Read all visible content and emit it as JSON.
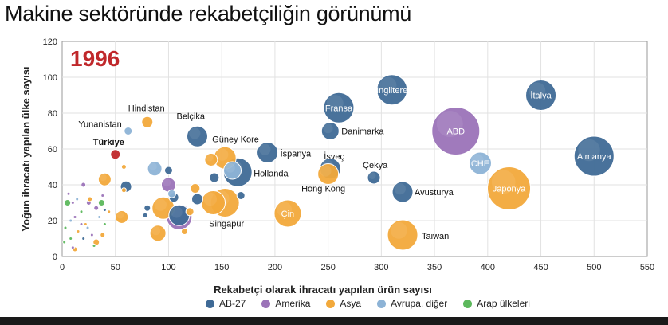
{
  "page": {
    "title": "Makine sektöründe rekabetçiliğin görünümü"
  },
  "colors": {
    "AB-27": "#3f6a96",
    "Amerika": "#9b73b8",
    "Asya": "#f2a93b",
    "Avrupa, diğer": "#8db3d6",
    "Arap ülkeleri": "#5cb85c",
    "Türkiye": "#c0282b",
    "grid": "#e2e2e2",
    "plot_border": "#9a9a9a",
    "year": "#c0282b"
  },
  "chart_data": {
    "type": "scatter",
    "annotation": "1996",
    "xlabel": "Rekabetçi olarak ihracatı yapılan ürün sayısı",
    "ylabel": "Yoğun ihracatı yapılan ülke sayısı",
    "xlim": [
      0,
      550
    ],
    "ylim": [
      0,
      120
    ],
    "x_ticks": [
      0,
      50,
      100,
      150,
      200,
      250,
      300,
      350,
      400,
      450,
      500,
      550
    ],
    "y_ticks": [
      0,
      20,
      40,
      60,
      80,
      100,
      120
    ],
    "grid": true,
    "legend_position": "bottom",
    "legend": [
      "AB-27",
      "Amerika",
      "Asya",
      "Avrupa, diğer",
      "Arap ülkeleri"
    ],
    "points": [
      {
        "label": "Almanya",
        "group": "AB-27",
        "x": 500,
        "y": 56,
        "r": 25,
        "label_inside": true
      },
      {
        "label": "İtalya",
        "group": "AB-27",
        "x": 450,
        "y": 90,
        "r": 19,
        "label_inside": true
      },
      {
        "label": "İngiltere",
        "group": "AB-27",
        "x": 310,
        "y": 93,
        "r": 19,
        "label_inside": true
      },
      {
        "label": "Fransa",
        "group": "AB-27",
        "x": 260,
        "y": 83,
        "r": 19,
        "label_inside": true
      },
      {
        "label": "ABD",
        "group": "Amerika",
        "x": 370,
        "y": 70,
        "r": 30,
        "label_inside": true
      },
      {
        "label": "CHE",
        "group": "Avrupa, diğer",
        "x": 393,
        "y": 52,
        "r": 14,
        "label_inside": true
      },
      {
        "label": "Japonya",
        "group": "Asya",
        "x": 420,
        "y": 38,
        "r": 27,
        "label_inside": true
      },
      {
        "label": "Danimarka",
        "group": "AB-27",
        "x": 252,
        "y": 70,
        "r": 11,
        "label_inside": false
      },
      {
        "label": "İsveç",
        "group": "AB-27",
        "x": 252,
        "y": 49,
        "r": 13,
        "label_inside": false
      },
      {
        "label": "Hong Kong",
        "group": "Asya",
        "x": 250,
        "y": 46,
        "r": 13,
        "label_inside": false
      },
      {
        "label": "Çekya",
        "group": "AB-27",
        "x": 293,
        "y": 44,
        "r": 8,
        "label_inside": false
      },
      {
        "label": "Avusturya",
        "group": "AB-27",
        "x": 320,
        "y": 36,
        "r": 13,
        "label_inside": false
      },
      {
        "label": "Taiwan",
        "group": "Asya",
        "x": 320,
        "y": 12,
        "r": 19,
        "label_inside": false
      },
      {
        "label": "Çin",
        "group": "Asya",
        "x": 212,
        "y": 24,
        "r": 17,
        "label_inside": true
      },
      {
        "label": "İspanya",
        "group": "AB-27",
        "x": 193,
        "y": 58,
        "r": 13,
        "label_inside": false
      },
      {
        "label": "Hollanda",
        "group": "AB-27",
        "x": 165,
        "y": 47,
        "r": 18,
        "label_inside": false
      },
      {
        "label": "Güney Kore",
        "group": "Asya",
        "x": 153,
        "y": 55,
        "r": 14,
        "label_inside": false
      },
      {
        "label": "Belçika",
        "group": "AB-27",
        "x": 127,
        "y": 67,
        "r": 13,
        "label_inside": false
      },
      {
        "label": "Singapur",
        "group": "Asya",
        "x": 153,
        "y": 30,
        "r": 18,
        "label_inside": false
      },
      {
        "label": "Hindistan",
        "group": "Asya",
        "x": 80,
        "y": 75,
        "r": 7,
        "label_inside": false
      },
      {
        "label": "Yunanistan",
        "group": "Avrupa, diğer",
        "x": 62,
        "y": 70,
        "r": 5,
        "label_inside": false
      },
      {
        "label": "Türkiye",
        "group": "Türkiye",
        "x": 50,
        "y": 57,
        "r": 6,
        "label_inside": false
      },
      {
        "label": "",
        "group": "Asya",
        "x": 142,
        "y": 30,
        "r": 15
      },
      {
        "label": "",
        "group": "Avrupa, diğer",
        "x": 160,
        "y": 48,
        "r": 11
      },
      {
        "label": "",
        "group": "Asya",
        "x": 140,
        "y": 54,
        "r": 8
      },
      {
        "label": "",
        "group": "AB-27",
        "x": 143,
        "y": 44,
        "r": 6
      },
      {
        "label": "",
        "group": "Asya",
        "x": 125,
        "y": 38,
        "r": 6
      },
      {
        "label": "",
        "group": "AB-27",
        "x": 127,
        "y": 32,
        "r": 7
      },
      {
        "label": "",
        "group": "AB-27",
        "x": 168,
        "y": 34,
        "r": 5
      },
      {
        "label": "",
        "group": "Amerika",
        "x": 110,
        "y": 22,
        "r": 16
      },
      {
        "label": "",
        "group": "AB-27",
        "x": 110,
        "y": 23,
        "r": 13
      },
      {
        "label": "",
        "group": "Asya",
        "x": 95,
        "y": 27,
        "r": 14
      },
      {
        "label": "",
        "group": "Asya",
        "x": 90,
        "y": 13,
        "r": 10
      },
      {
        "label": "",
        "group": "Amerika",
        "x": 100,
        "y": 40,
        "r": 9
      },
      {
        "label": "",
        "group": "Avrupa, diğer",
        "x": 87,
        "y": 49,
        "r": 9
      },
      {
        "label": "",
        "group": "AB-27",
        "x": 100,
        "y": 48,
        "r": 5
      },
      {
        "label": "",
        "group": "AB-27",
        "x": 105,
        "y": 33,
        "r": 6
      },
      {
        "label": "",
        "group": "Avrupa, diğer",
        "x": 103,
        "y": 35,
        "r": 5
      },
      {
        "label": "",
        "group": "AB-27",
        "x": 80,
        "y": 27,
        "r": 4
      },
      {
        "label": "",
        "group": "AB-27",
        "x": 78,
        "y": 23,
        "r": 3
      },
      {
        "label": "",
        "group": "Asya",
        "x": 115,
        "y": 14,
        "r": 4
      },
      {
        "label": "",
        "group": "Asya",
        "x": 120,
        "y": 25,
        "r": 5
      },
      {
        "label": "",
        "group": "AB-27",
        "x": 60,
        "y": 39,
        "r": 7
      },
      {
        "label": "",
        "group": "Asya",
        "x": 40,
        "y": 43,
        "r": 8
      },
      {
        "label": "",
        "group": "Asya",
        "x": 56,
        "y": 22,
        "r": 8
      },
      {
        "label": "",
        "group": "Asya",
        "x": 58,
        "y": 37,
        "r": 3
      },
      {
        "label": "",
        "group": "Asya",
        "x": 58,
        "y": 50,
        "r": 3
      },
      {
        "label": "",
        "group": "Amerika",
        "x": 20,
        "y": 40,
        "r": 3
      },
      {
        "label": "",
        "group": "Amerika",
        "x": 25,
        "y": 30,
        "r": 3
      },
      {
        "label": "",
        "group": "Amerika",
        "x": 32,
        "y": 27,
        "r": 3
      },
      {
        "label": "",
        "group": "Amerika",
        "x": 12,
        "y": 22,
        "r": 2
      },
      {
        "label": "",
        "group": "Amerika",
        "x": 18,
        "y": 18,
        "r": 2
      },
      {
        "label": "",
        "group": "Amerika",
        "x": 10,
        "y": 30,
        "r": 2
      },
      {
        "label": "",
        "group": "Amerika",
        "x": 6,
        "y": 35,
        "r": 2
      },
      {
        "label": "",
        "group": "Amerika",
        "x": 28,
        "y": 12,
        "r": 2
      },
      {
        "label": "",
        "group": "Amerika",
        "x": 38,
        "y": 34,
        "r": 2
      },
      {
        "label": "",
        "group": "Amerika",
        "x": 10,
        "y": 5,
        "r": 2
      },
      {
        "label": "",
        "group": "Arap ülkeleri",
        "x": 5,
        "y": 30,
        "r": 4
      },
      {
        "label": "",
        "group": "Arap ülkeleri",
        "x": 37,
        "y": 30,
        "r": 4
      },
      {
        "label": "",
        "group": "Arap ülkeleri",
        "x": 3,
        "y": 16,
        "r": 2
      },
      {
        "label": "",
        "group": "Arap ülkeleri",
        "x": 18,
        "y": 25,
        "r": 2
      },
      {
        "label": "",
        "group": "Arap ülkeleri",
        "x": 8,
        "y": 10,
        "r": 2
      },
      {
        "label": "",
        "group": "Arap ülkeleri",
        "x": 30,
        "y": 6,
        "r": 2
      },
      {
        "label": "",
        "group": "Arap ülkeleri",
        "x": 40,
        "y": 18,
        "r": 2
      },
      {
        "label": "",
        "group": "Arap ülkeleri",
        "x": 2,
        "y": 8,
        "r": 2
      },
      {
        "label": "",
        "group": "Asya",
        "x": 26,
        "y": 32,
        "r": 3
      },
      {
        "label": "",
        "group": "Asya",
        "x": 32,
        "y": 8,
        "r": 4
      },
      {
        "label": "",
        "group": "Asya",
        "x": 38,
        "y": 12,
        "r": 3
      },
      {
        "label": "",
        "group": "Asya",
        "x": 22,
        "y": 18,
        "r": 2
      },
      {
        "label": "",
        "group": "Asya",
        "x": 15,
        "y": 14,
        "r": 2
      },
      {
        "label": "",
        "group": "Asya",
        "x": 44,
        "y": 25,
        "r": 2
      },
      {
        "label": "",
        "group": "Asya",
        "x": 12,
        "y": 4,
        "r": 3
      },
      {
        "label": "",
        "group": "Avrupa, diğer",
        "x": 14,
        "y": 32,
        "r": 2
      },
      {
        "label": "",
        "group": "Avrupa, diğer",
        "x": 24,
        "y": 16,
        "r": 2
      },
      {
        "label": "",
        "group": "Avrupa, diğer",
        "x": 35,
        "y": 22,
        "r": 2
      },
      {
        "label": "",
        "group": "Avrupa, diğer",
        "x": 8,
        "y": 20,
        "r": 2
      },
      {
        "label": "",
        "group": "AB-27",
        "x": 40,
        "y": 26,
        "r": 2
      },
      {
        "label": "",
        "group": "AB-27",
        "x": 20,
        "y": 10,
        "r": 2
      }
    ]
  }
}
